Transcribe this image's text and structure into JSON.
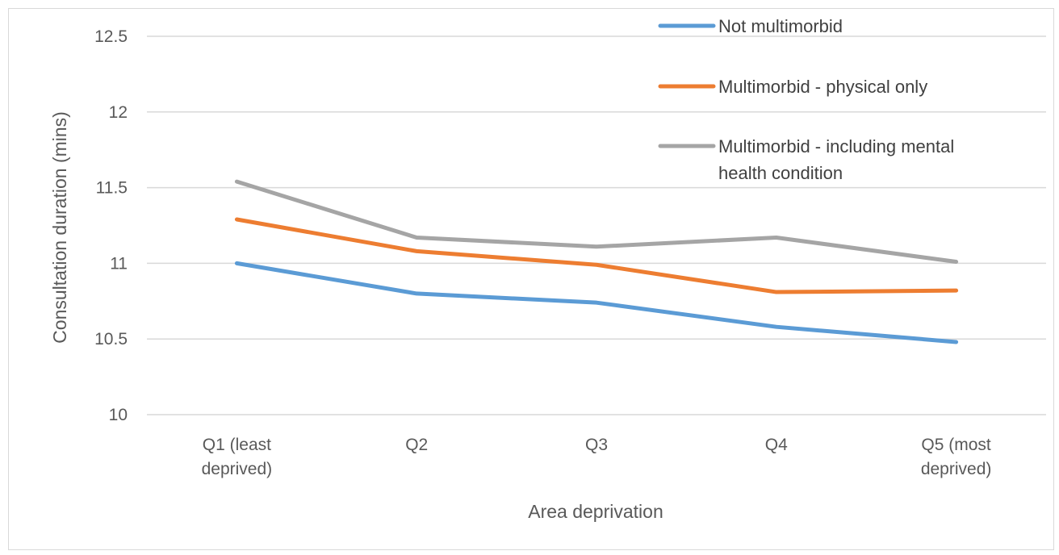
{
  "chart_data": {
    "type": "line",
    "title": "",
    "xlabel": "Area deprivation",
    "ylabel": "Consultation duration (mins)",
    "ylim": [
      10,
      12.5
    ],
    "yticks": [
      "10",
      "10.5",
      "11",
      "11.5",
      "12",
      "12.5"
    ],
    "grid": true,
    "legend_position": "top-right",
    "categories": [
      [
        "Q1 (least",
        "deprived)"
      ],
      [
        "Q2"
      ],
      [
        "Q3"
      ],
      [
        "Q4"
      ],
      [
        "Q5 (most",
        "deprived)"
      ]
    ],
    "series": [
      {
        "name": "Not multimorbid",
        "name_lines": [
          "Not multimorbid"
        ],
        "color": "#5b9bd5",
        "values": [
          11.0,
          10.8,
          10.74,
          10.58,
          10.48
        ]
      },
      {
        "name": "Multimorbid - physical only",
        "name_lines": [
          "Multimorbid - physical only"
        ],
        "color": "#ed7d31",
        "values": [
          11.29,
          11.08,
          10.99,
          10.81,
          10.82
        ]
      },
      {
        "name": "Multimorbid - including mental health condition",
        "name_lines": [
          "Multimorbid - including mental",
          "health condition"
        ],
        "color": "#a5a5a5",
        "values": [
          11.54,
          11.17,
          11.11,
          11.17,
          11.01
        ]
      }
    ]
  }
}
